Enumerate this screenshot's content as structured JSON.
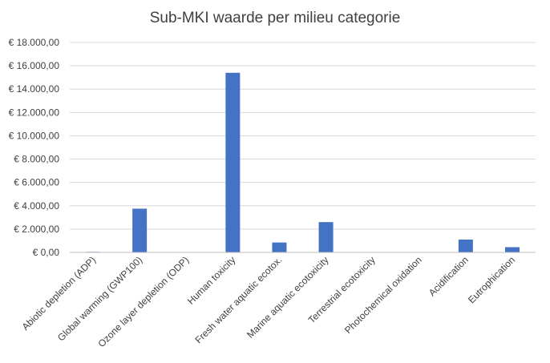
{
  "chart_data": {
    "type": "bar",
    "title": "Sub-MKI waarde per milieu categorie",
    "xlabel": "",
    "ylabel": "",
    "categories": [
      "Abiotic depletion (ADP)",
      "Global warming (GWP100)",
      "Ozone layer depletion (ODP)",
      "Human toxicity",
      "Fresh water aquatic ecotox.",
      "Marine aquatic ecotoxicity",
      "Terrestrial ecotoxicity",
      "Photochemical oxidation",
      "Acidification",
      "Eutrophication"
    ],
    "values": [
      50,
      3750,
      5,
      15400,
      850,
      2600,
      20,
      20,
      1100,
      450
    ],
    "ylim": [
      0,
      18000
    ],
    "yticks": [
      0,
      2000,
      4000,
      6000,
      8000,
      10000,
      12000,
      14000,
      16000,
      18000
    ],
    "ytick_labels": [
      "€ 0,00",
      "€ 2.000,00",
      "€ 4.000,00",
      "€ 6.000,00",
      "€ 8.000,00",
      "€ 10.000,00",
      "€ 12.000,00",
      "€ 14.000,00",
      "€ 16.000,00",
      "€ 18.000,00"
    ],
    "grid": true,
    "legend": "none",
    "bar_color": "#4472c4"
  }
}
